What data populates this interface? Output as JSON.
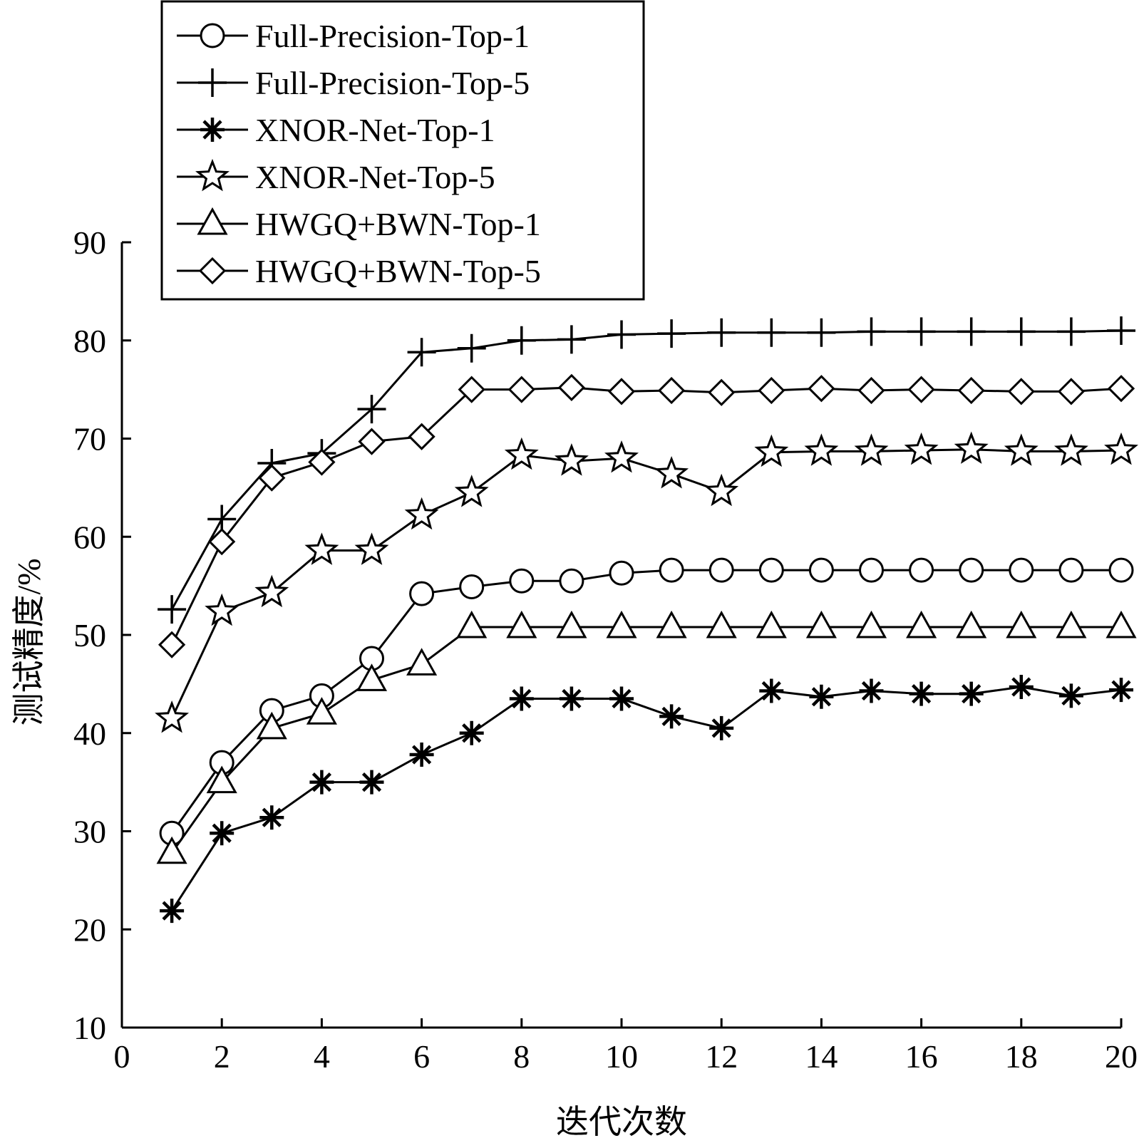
{
  "chart_data": {
    "type": "line",
    "title": "",
    "xlabel": "迭代次数",
    "ylabel": "测试精度/%",
    "xlim": [
      0,
      20
    ],
    "ylim": [
      10,
      90
    ],
    "xticks": [
      "0",
      "2",
      "4",
      "6",
      "8",
      "10",
      "12",
      "14",
      "16",
      "18",
      "20"
    ],
    "yticks": [
      "10",
      "20",
      "30",
      "40",
      "50",
      "60",
      "70",
      "80",
      "90"
    ],
    "grid": false,
    "legend_position": "top-left",
    "x": [
      1,
      2,
      3,
      4,
      5,
      6,
      7,
      8,
      9,
      10,
      11,
      12,
      13,
      14,
      15,
      16,
      17,
      18,
      19,
      20
    ],
    "series": [
      {
        "name": "Full-Precision-Top-1",
        "marker": "circle",
        "values": [
          29.8,
          37.0,
          42.3,
          43.8,
          47.6,
          54.2,
          54.9,
          55.5,
          55.5,
          56.3,
          56.6,
          56.6,
          56.6,
          56.6,
          56.6,
          56.6,
          56.6,
          56.6,
          56.6,
          56.6
        ]
      },
      {
        "name": "Full-Precision-Top-5",
        "marker": "plus",
        "values": [
          52.6,
          61.8,
          67.5,
          68.5,
          73.0,
          78.8,
          79.2,
          80.0,
          80.1,
          80.6,
          80.7,
          80.8,
          80.8,
          80.8,
          80.9,
          80.9,
          80.9,
          80.9,
          80.9,
          81.0
        ]
      },
      {
        "name": "XNOR-Net-Top-1",
        "marker": "asterisk",
        "values": [
          21.9,
          29.8,
          31.4,
          35.0,
          35.0,
          37.8,
          40.0,
          43.5,
          43.5,
          43.5,
          41.7,
          40.5,
          44.3,
          43.7,
          44.3,
          44.0,
          44.0,
          44.7,
          43.8,
          44.4
        ]
      },
      {
        "name": "XNOR-Net-Top-5",
        "marker": "star",
        "values": [
          41.5,
          52.4,
          54.3,
          58.6,
          58.6,
          62.2,
          64.5,
          68.3,
          67.7,
          68.0,
          66.4,
          64.6,
          68.6,
          68.7,
          68.7,
          68.8,
          68.9,
          68.7,
          68.7,
          68.8
        ]
      },
      {
        "name": "HWGQ+BWN-Top-1",
        "marker": "triangle",
        "values": [
          27.8,
          35.0,
          40.5,
          42.0,
          45.4,
          47.0,
          50.8,
          50.8,
          50.8,
          50.8,
          50.8,
          50.8,
          50.8,
          50.8,
          50.8,
          50.8,
          50.8,
          50.8,
          50.8,
          50.8
        ]
      },
      {
        "name": "HWGQ+BWN-Top-5",
        "marker": "diamond",
        "values": [
          49.0,
          59.5,
          66.0,
          67.6,
          69.7,
          70.2,
          75.0,
          75.0,
          75.2,
          74.8,
          74.9,
          74.7,
          74.9,
          75.1,
          74.9,
          75.0,
          74.9,
          74.8,
          74.8,
          75.1
        ]
      }
    ]
  }
}
